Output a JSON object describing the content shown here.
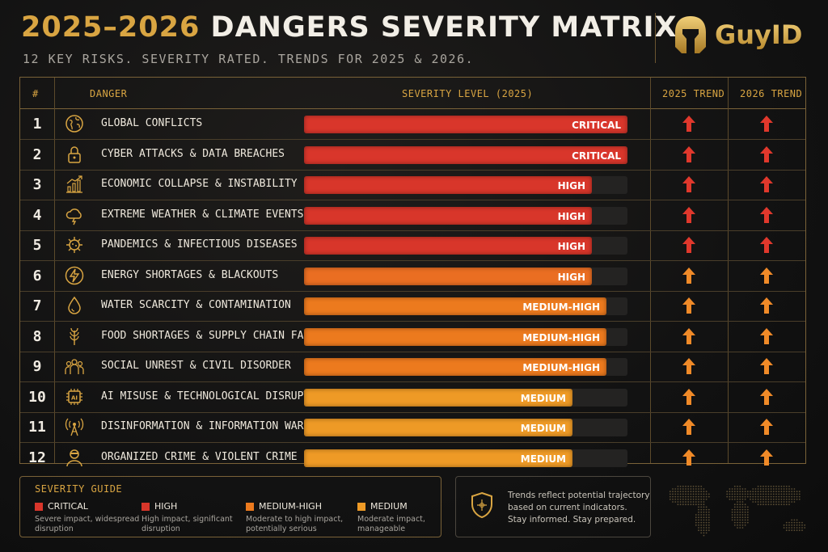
{
  "header": {
    "title_years": "2025–2026",
    "title_rest": "DANGERS SEVERITY MATRIX",
    "subtitle": "12 KEY RISKS. SEVERITY RATED. TRENDS FOR 2025 & 2026.",
    "logo_text": "GuyID"
  },
  "colors": {
    "critical": "#d9362b",
    "high": "#d8362a",
    "high_energy": "#ea6e22",
    "medium_high": "#ec7a1e",
    "medium": "#ee9a26",
    "trend_red": "#e0382c",
    "trend_orange": "#f08a28",
    "accent": "#d9a542"
  },
  "columns": {
    "num": "#",
    "danger": "DANGER",
    "severity": "SEVERITY LEVEL (2025)",
    "trend2025": "2025 TREND",
    "trend2026": "2026 TREND"
  },
  "chart_data": {
    "type": "bar",
    "title": "2025–2026 DANGERS SEVERITY MATRIX",
    "orientation": "horizontal",
    "scale": {
      "critical": 1.0,
      "high": 0.89,
      "medium_high": 0.935,
      "medium": 0.83
    },
    "rows": [
      {
        "num": "1",
        "danger": "GLOBAL CONFLICTS",
        "icon": "globe-icon",
        "severity": "CRITICAL",
        "value": 1.0,
        "color": "#d9362b",
        "trend2025": "up",
        "trend2026": "up",
        "trend_color": "#e0382c"
      },
      {
        "num": "2",
        "danger": "CYBER ATTACKS & DATA BREACHES",
        "icon": "lock-icon",
        "severity": "CRITICAL",
        "value": 1.0,
        "color": "#d9362b",
        "trend2025": "up",
        "trend2026": "up",
        "trend_color": "#e0382c"
      },
      {
        "num": "3",
        "danger": "ECONOMIC COLLAPSE & INSTABILITY",
        "icon": "chart-up-icon",
        "severity": "HIGH",
        "value": 0.89,
        "color": "#d8362a",
        "trend2025": "up",
        "trend2026": "up",
        "trend_color": "#e0382c"
      },
      {
        "num": "4",
        "danger": "EXTREME WEATHER & CLIMATE EVENTS",
        "icon": "storm-cloud-icon",
        "severity": "HIGH",
        "value": 0.89,
        "color": "#d8362a",
        "trend2025": "up",
        "trend2026": "up",
        "trend_color": "#e0382c"
      },
      {
        "num": "5",
        "danger": "PANDEMICS & INFECTIOUS DISEASES",
        "icon": "virus-icon",
        "severity": "HIGH",
        "value": 0.89,
        "color": "#d8362a",
        "trend2025": "up",
        "trend2026": "up",
        "trend_color": "#e0382c"
      },
      {
        "num": "6",
        "danger": "ENERGY SHORTAGES & BLACKOUTS",
        "icon": "bolt-icon",
        "severity": "HIGH",
        "value": 0.89,
        "color": "#ea6e22",
        "trend2025": "up",
        "trend2026": "up",
        "trend_color": "#f08a28"
      },
      {
        "num": "7",
        "danger": "WATER SCARCITY & CONTAMINATION",
        "icon": "droplet-icon",
        "severity": "MEDIUM-HIGH",
        "value": 0.935,
        "color": "#ec7a1e",
        "trend2025": "up",
        "trend2026": "up",
        "trend_color": "#f08a28"
      },
      {
        "num": "8",
        "danger": "FOOD SHORTAGES & SUPPLY CHAIN FAILURES",
        "icon": "wheat-icon",
        "severity": "MEDIUM-HIGH",
        "value": 0.935,
        "color": "#ec7a1e",
        "trend2025": "up",
        "trend2026": "up",
        "trend_color": "#f08a28"
      },
      {
        "num": "9",
        "danger": "SOCIAL UNREST & CIVIL DISORDER",
        "icon": "people-group-icon",
        "severity": "MEDIUM-HIGH",
        "value": 0.935,
        "color": "#ec7a1e",
        "trend2025": "up",
        "trend2026": "up",
        "trend_color": "#f08a28"
      },
      {
        "num": "10",
        "danger": "AI MISUSE & TECHNOLOGICAL DISRUPTION",
        "icon": "ai-chip-icon",
        "severity": "MEDIUM",
        "value": 0.83,
        "color": "#ee9a26",
        "trend2025": "up",
        "trend2026": "up",
        "trend_color": "#f08a28"
      },
      {
        "num": "11",
        "danger": "DISINFORMATION & INFORMATION WARFARE",
        "icon": "broadcast-icon",
        "severity": "MEDIUM",
        "value": 0.83,
        "color": "#ee9a26",
        "trend2025": "up",
        "trend2026": "up",
        "trend_color": "#f08a28"
      },
      {
        "num": "12",
        "danger": "ORGANIZED CRIME & VIOLENT CRIME",
        "icon": "masked-person-icon",
        "severity": "MEDIUM",
        "value": 0.83,
        "color": "#ee9a26",
        "trend2025": "up",
        "trend2026": "up",
        "trend_color": "#f08a28"
      }
    ]
  },
  "guide": {
    "title": "SEVERITY GUIDE",
    "items": [
      {
        "name": "CRITICAL",
        "desc": "Severe impact, widespread disruption",
        "color": "#d9362b"
      },
      {
        "name": "HIGH",
        "desc": "High impact, significant disruption",
        "color": "#d8362a"
      },
      {
        "name": "MEDIUM-HIGH",
        "desc": "Moderate to high impact, potentially serious",
        "color": "#ec7a1e"
      },
      {
        "name": "MEDIUM",
        "desc": "Moderate impact, manageable",
        "color": "#ee9a26"
      }
    ]
  },
  "note": {
    "line1": "Trends reflect potential trajectory",
    "line2": "based on current indicators.",
    "line3": "Stay informed. Stay prepared.",
    "icon": "shield-icon"
  }
}
